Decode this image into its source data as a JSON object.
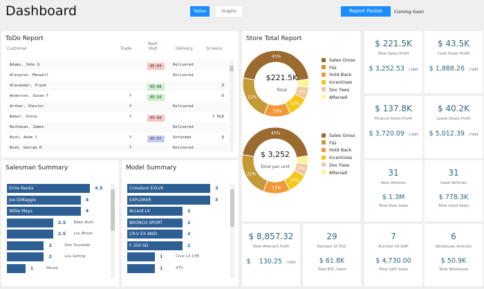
{
  "header": {
    "title": "Dashboard",
    "tabs": [
      {
        "label": "Tables",
        "active": true
      },
      {
        "label": "Graphs",
        "active": false
      }
    ],
    "report_button": "Report Packet",
    "coming_soon": "Coming Soon",
    "accent": "#1a8cff"
  },
  "todo": {
    "title": "ToDo Report",
    "columns": [
      "Customer",
      "Trade",
      "Next\nVisit",
      "Delivery",
      "Screens"
    ],
    "rows": [
      {
        "customer": "Adams, John Q",
        "trade": "",
        "visit": "05-04",
        "visit_color": "#f6c6c6",
        "delivery": "Delivered",
        "screens": ""
      },
      {
        "customer": "Alevarez, Maxwell",
        "trade": "",
        "visit": "",
        "visit_color": "",
        "delivery": "Delivered",
        "screens": ""
      },
      {
        "customer": "Alexander, Frank",
        "trade": "",
        "visit": "05-08",
        "visit_color": "#c8f0c8",
        "delivery": "",
        "screens": "D"
      },
      {
        "customer": "Anderson, Susan T",
        "trade": "Y",
        "visit": "05-10",
        "visit_color": "#c8f0c8",
        "delivery": "",
        "screens": "D"
      },
      {
        "customer": "Arther, Chester",
        "trade": "Y",
        "visit": "",
        "visit_color": "",
        "delivery": "Delivered",
        "screens": ""
      },
      {
        "customer": "Baker, Steve",
        "trade": "Y",
        "visit": "05-08",
        "visit_color": "#f6c6c6",
        "delivery": "",
        "screens": "C RLD"
      },
      {
        "customer": "Buchanan, James",
        "trade": "",
        "visit": "",
        "visit_color": "",
        "delivery": "Delivered",
        "screens": ""
      },
      {
        "customer": "Bush, Adam J",
        "trade": "Y",
        "visit": "05-07",
        "visit_color": "#c8c8f4",
        "delivery": "Unfunded",
        "screens": "D"
      },
      {
        "customer": "Bush, George H",
        "trade": "Y",
        "visit": "",
        "visit_color": "",
        "delivery": "Delivered",
        "screens": ""
      }
    ]
  },
  "salesman": {
    "title": "Salesman Summary",
    "items": [
      {
        "name": "Ernie Banks",
        "value": 4.5
      },
      {
        "name": "Joe DiMaggio",
        "value": 4
      },
      {
        "name": "Willie Mays",
        "value": 4
      },
      {
        "name": "Babe Ruth",
        "value": 2.5
      },
      {
        "name": "Lou Brock",
        "value": 2.5
      },
      {
        "name": "Don Drysdale",
        "value": 2
      },
      {
        "name": "Lou Gehrig",
        "value": 2
      },
      {
        "name": "House",
        "value": 1
      }
    ]
  },
  "model": {
    "title": "Model Summary",
    "items": [
      {
        "name": "Crosstour EXLV6",
        "value": 3
      },
      {
        "name": "EXPLORER",
        "value": 3
      },
      {
        "name": "Accord LX",
        "value": 2
      },
      {
        "name": "BRONCO SPORT",
        "value": 2
      },
      {
        "name": "CR-V EX AWD",
        "value": 2
      },
      {
        "name": "F-350 SD",
        "value": 2
      },
      {
        "name": "Civic LX CPE",
        "value": 1
      },
      {
        "name": "XTS",
        "value": 1
      }
    ]
  },
  "store": {
    "title": "Store Total Report",
    "legend": [
      {
        "label": "Sales Gross",
        "color": "#9b6a2f",
        "pct": 45
      },
      {
        "label": "F&I",
        "color": "#c39a35",
        "pct": 22
      },
      {
        "label": "Hold Back",
        "color": "#f0993a",
        "pct": 13
      },
      {
        "label": "Incentives",
        "color": "#f5c518",
        "pct": 10
      },
      {
        "label": "Doc Fees",
        "color": "#f0c8a0",
        "pct": 6
      },
      {
        "label": "Aftersell",
        "color": "#fbf59a",
        "pct": 4
      }
    ],
    "donuts": [
      {
        "value": "$221.5K",
        "label": "Total"
      },
      {
        "value": "$ 3,252",
        "label": "Total per unit"
      }
    ]
  },
  "cards": [
    {
      "big": "$ 221.5K",
      "label": "Total Sales Profit",
      "unit": "$ 3,252.53",
      "unit_suffix": "/ Unit"
    },
    {
      "big": "$ 43.5K",
      "label": "Cash Deals Profit",
      "unit": "$ 1,888.26",
      "unit_suffix": "/ Unit"
    },
    {
      "big": "$ 137.8K",
      "label": "Finance Deals Profit",
      "unit": "$ 3,720.09",
      "unit_suffix": "/ Unit"
    },
    {
      "big": "$ 40.2K",
      "label": "Lease Deals Profit",
      "unit": "$ 5,012.39",
      "unit_suffix": "/ Unit"
    },
    {
      "big": "31",
      "label": "New Vehicles",
      "sub": "$ 1.3M",
      "sub_label": "Total New Sales"
    },
    {
      "big": "31",
      "label": "Used Vehicles",
      "sub": "$ 778.3K",
      "sub_label": "Total Used Sales"
    },
    {
      "big": "$ 8,857.32",
      "label": "Total Aftersell Profit",
      "unit": "$    130.25",
      "unit_suffix": "/ Unit"
    },
    {
      "big": "29",
      "label": "Number Of ESC",
      "sub": "$ 61.8K",
      "sub_label": "Total ESC Sales"
    },
    {
      "big": "7",
      "label": "Number Of GAP",
      "sub": "$ 4,730.00",
      "sub_label": "Total GAP Sales"
    },
    {
      "big": "6",
      "label": "Wholesale Vehicles",
      "sub": "$ 50.9K",
      "sub_label": "Total Wholesale"
    }
  ]
}
